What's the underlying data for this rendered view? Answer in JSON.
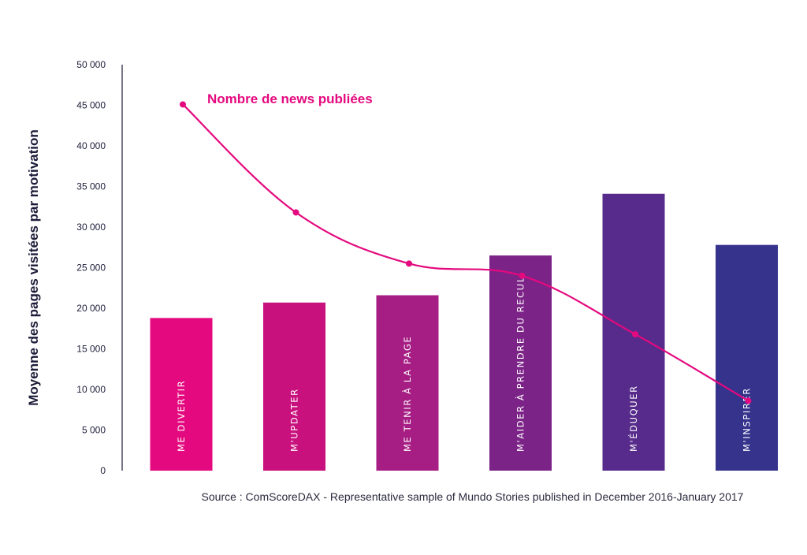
{
  "chart_data": {
    "type": "bar",
    "ylabel": "Moyenne des pages visitées par motivation",
    "ylim": [
      0,
      50000
    ],
    "yticks": [
      0,
      5000,
      10000,
      15000,
      20000,
      25000,
      30000,
      35000,
      40000,
      45000,
      50000
    ],
    "ytick_labels": [
      "0",
      "5 000",
      "10 000",
      "15 000",
      "20 000",
      "25 000",
      "30 000",
      "35 000",
      "40 000",
      "45 000",
      "50 000"
    ],
    "categories": [
      "ME DIVERTIR",
      "M'UPDATER",
      "ME TENIR À LA PAGE",
      "M'AIDER À PRENDRE DU RECUL",
      "M'ÉDUQUER",
      "M'INSPIRER"
    ],
    "values": [
      18800,
      20700,
      21600,
      26500,
      34100,
      27800
    ],
    "bar_colors": [
      "#e4097e",
      "#c9117e",
      "#a61d84",
      "#7c2388",
      "#572b8b",
      "#35338c"
    ],
    "line_series": {
      "name": "Nombre de news publiées",
      "color": "#e4097e",
      "values": [
        45100,
        31800,
        25500,
        24000,
        16800,
        8600
      ]
    },
    "grid": false
  },
  "source": "Source :  ComScoreDAX - Representative sample of Mundo Stories published in December 2016-January 2017"
}
